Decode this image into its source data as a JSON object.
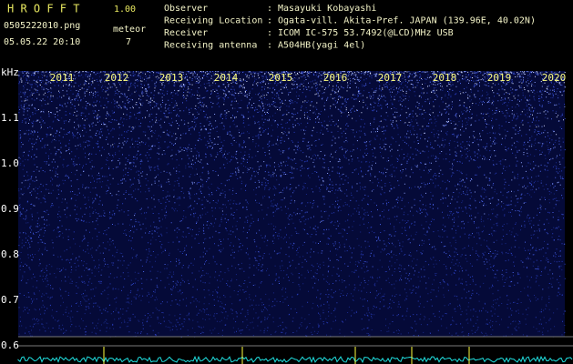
{
  "header": {
    "app_name": "H R O F F T",
    "version": "1.00",
    "file": "0505222010.png",
    "datetime": "05.05.22 20:10",
    "counter_label": "meteor",
    "counter_value": 7,
    "separator": ":",
    "fields": [
      {
        "label": "Observer",
        "value": "Masayuki Kobayashi"
      },
      {
        "label": "Receiving Location",
        "value": "Ogata-vill. Akita-Pref. JAPAN (139.96E, 40.02N)"
      },
      {
        "label": "Receiver",
        "value": "ICOM IC-575 53.7492(@LCD)MHz USB"
      },
      {
        "label": "Receiving antenna",
        "value": "A504HB(yagi 4el)"
      }
    ]
  },
  "spectrogram": {
    "unit": "kHz",
    "freq_labels": [
      "1.1",
      "1.0",
      "0.9",
      "0.8",
      "0.7",
      "0.6"
    ],
    "year_labels": [
      "2011",
      "2012",
      "2013",
      "2014",
      "2015",
      "2016",
      "2017",
      "2018",
      "2019",
      "2020"
    ]
  }
}
